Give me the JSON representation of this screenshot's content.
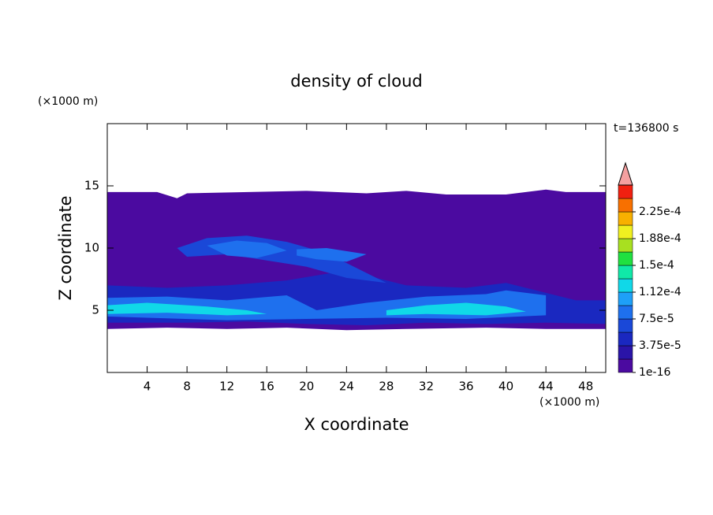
{
  "chart_data": {
    "type": "contour",
    "title": "density of cloud",
    "xlabel": "X coordinate",
    "ylabel": "Z coordinate",
    "xunit": "(×1000 m)",
    "yunit": "(×1000 m)",
    "time_label": "t=136800 s",
    "xlim": [
      0,
      50
    ],
    "ylim": [
      0,
      20
    ],
    "xticks": [
      4,
      8,
      12,
      16,
      20,
      24,
      28,
      32,
      36,
      40,
      44,
      48
    ],
    "yticks": [
      5,
      10,
      15
    ],
    "clim": [
      0,
      0.0002625
    ],
    "levels": [
      1e-16,
      1.875e-05,
      3.75e-05,
      5.625e-05,
      7.5e-05,
      9.375e-05,
      0.0001125,
      0.00013125,
      0.00015,
      0.00016875,
      0.0001875,
      0.00020625,
      0.000225,
      0.00024375
    ],
    "colors": [
      "#4b0aa0",
      "#2a14a8",
      "#1a28c0",
      "#1a48d8",
      "#1e70ee",
      "#1ea0f8",
      "#10d8e8",
      "#10e8a8",
      "#20e040",
      "#a8e020",
      "#f0f020",
      "#f8b000",
      "#f87000",
      "#f02010"
    ],
    "extend_color": "#f4a0a0",
    "cticks": [
      {
        "value": 1e-16,
        "label": "1e-16"
      },
      {
        "value": 3.75e-05,
        "label": "3.75e-5"
      },
      {
        "value": 7.5e-05,
        "label": "7.5e-5"
      },
      {
        "value": 0.0001125,
        "label": "1.12e-4"
      },
      {
        "value": 0.00015,
        "label": "1.5e-4"
      },
      {
        "value": 0.0001875,
        "label": "1.88e-4"
      },
      {
        "value": 0.000225,
        "label": "2.25e-4"
      }
    ],
    "regions": [
      {
        "level": 1e-16,
        "x": [
          0,
          5,
          7,
          8,
          20,
          26,
          30,
          34,
          40,
          44,
          46,
          50,
          50,
          44,
          38,
          30,
          24,
          18,
          12,
          6,
          0
        ],
        "z": [
          14.5,
          14.5,
          14.0,
          14.4,
          14.6,
          14.4,
          14.6,
          14.3,
          14.3,
          14.7,
          14.5,
          14.5,
          3.5,
          3.5,
          3.6,
          3.5,
          3.4,
          3.6,
          3.5,
          3.6,
          3.5
        ]
      },
      {
        "level": 3.75e-05,
        "x": [
          0,
          6,
          12,
          18,
          24,
          30,
          36,
          40,
          44,
          47,
          50,
          50,
          44,
          38,
          32,
          26,
          20,
          14,
          8,
          0
        ],
        "z": [
          7.0,
          6.8,
          7.0,
          7.4,
          8.2,
          7.0,
          6.8,
          7.2,
          6.4,
          5.8,
          5.8,
          3.9,
          4.0,
          3.9,
          4.0,
          3.8,
          3.9,
          4.1,
          4.0,
          4.0
        ]
      },
      {
        "level": 5.625e-05,
        "x": [
          7,
          10,
          14,
          18,
          22,
          26,
          28,
          24,
          20,
          16,
          12,
          8
        ],
        "z": [
          10.0,
          10.8,
          11.0,
          10.5,
          9.6,
          8.0,
          7.2,
          7.6,
          8.5,
          9.0,
          9.5,
          9.3
        ]
      },
      {
        "level": 7.5e-05,
        "x": [
          0,
          6,
          12,
          18,
          21,
          26,
          32,
          38,
          40,
          44,
          44,
          36,
          28,
          20,
          12,
          4,
          0
        ],
        "z": [
          6.0,
          6.1,
          5.8,
          6.2,
          5.0,
          5.6,
          6.1,
          6.3,
          6.6,
          6.2,
          4.6,
          4.3,
          4.4,
          4.3,
          4.2,
          4.4,
          4.5
        ]
      },
      {
        "level": 7.5e-05,
        "x": [
          10,
          13,
          16,
          18,
          15,
          12
        ],
        "z": [
          10.2,
          10.6,
          10.4,
          9.8,
          9.2,
          9.4
        ]
      },
      {
        "level": 7.5e-05,
        "x": [
          19,
          22,
          26,
          24,
          21,
          19
        ],
        "z": [
          9.9,
          10.0,
          9.5,
          8.9,
          9.1,
          9.4
        ]
      },
      {
        "level": 0.0001125,
        "x": [
          0,
          4,
          10,
          14,
          16,
          12,
          6,
          0
        ],
        "z": [
          5.4,
          5.6,
          5.3,
          5.0,
          4.7,
          4.6,
          4.8,
          4.7
        ]
      },
      {
        "level": 0.0001125,
        "x": [
          28,
          32,
          36,
          40,
          42,
          38,
          32,
          28
        ],
        "z": [
          5.0,
          5.4,
          5.6,
          5.3,
          4.9,
          4.6,
          4.7,
          4.6
        ]
      }
    ]
  }
}
